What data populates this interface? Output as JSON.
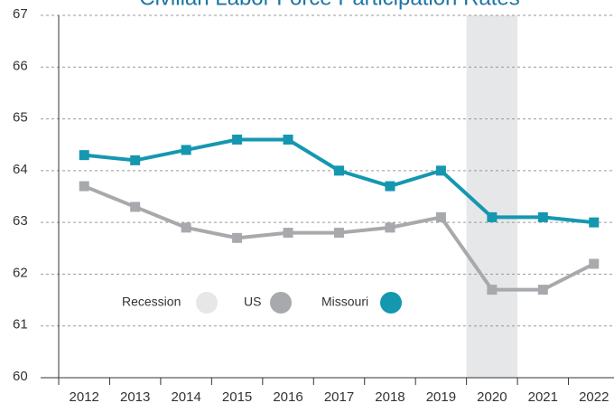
{
  "chart_data": {
    "type": "line",
    "title": "Civilian Labor Force Participation Rates",
    "categories": [
      "2012",
      "2013",
      "2014",
      "2015",
      "2016",
      "2017",
      "2018",
      "2019",
      "2020",
      "2021",
      "2022"
    ],
    "series": [
      {
        "name": "US",
        "color": "#a7a9ac",
        "values": [
          63.7,
          63.3,
          62.9,
          62.7,
          62.8,
          62.8,
          62.9,
          63.1,
          61.7,
          61.7,
          62.2
        ]
      },
      {
        "name": "Missouri",
        "color": "#1597b0",
        "values": [
          64.3,
          64.2,
          64.4,
          64.6,
          64.6,
          64.0,
          63.7,
          64.0,
          63.1,
          63.1,
          63.0
        ]
      }
    ],
    "recession": {
      "name": "Recession",
      "color": "#e6e7e9",
      "x": "2020"
    },
    "ylim": [
      60,
      67
    ],
    "yticks": [
      60,
      61,
      62,
      63,
      64,
      65,
      66,
      67
    ],
    "grid": true
  }
}
